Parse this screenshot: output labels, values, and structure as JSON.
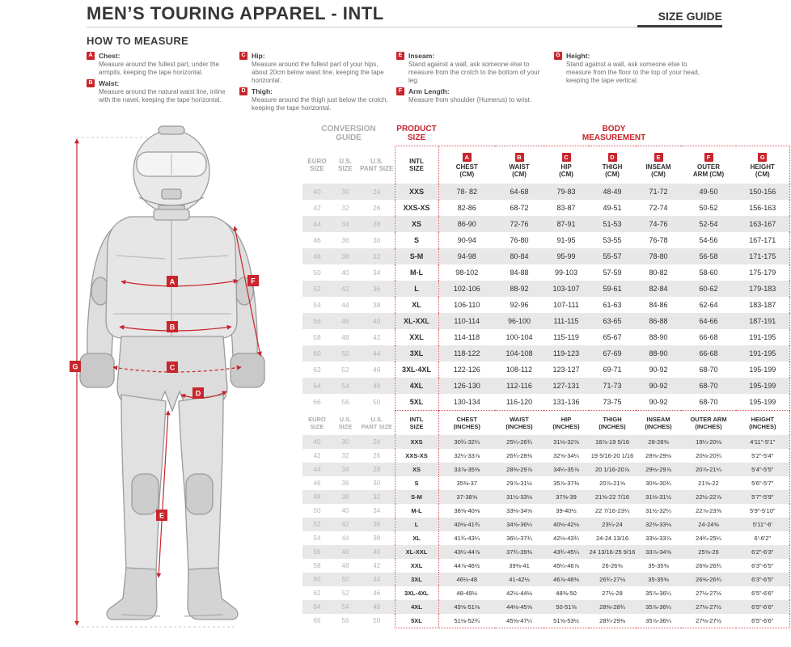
{
  "header": {
    "title": "MEN’S TOURING APPAREL - INTL",
    "size_guide_label": "SIZE GUIDE"
  },
  "how_to_measure": {
    "title": "HOW TO MEASURE",
    "columns": [
      [
        {
          "letter": "A",
          "name": "Chest:",
          "text": "Measure around the fullest part, under the armpits, keeping the tape horizontal."
        },
        {
          "letter": "B",
          "name": "Waist:",
          "text": "Measure around the natural waist line, inline with the navel, keeping the tape horizontal."
        }
      ],
      [
        {
          "letter": "C",
          "name": "Hip:",
          "text": "Measure around the fullest part of your hips, about 20cm below waist line, keeping the tape horizontal."
        },
        {
          "letter": "D",
          "name": "Thigh:",
          "text": "Measure around the thigh just below the crotch, keeping the tape horizontal."
        }
      ],
      [
        {
          "letter": "E",
          "name": "Inseam:",
          "text": "Stand against a wall, ask someone else to measure from the crotch to the bottom of your leg."
        },
        {
          "letter": "F",
          "name": "Arm Length:",
          "text": "Measure from shoulder (Humerus) to wrist."
        }
      ],
      [
        {
          "letter": "G",
          "name": "Height:",
          "text": "Stand against a wall, ask someone else to measure from the floor to the top of your head, keeping the tape vertical."
        }
      ]
    ]
  },
  "figure": {
    "badges": [
      "A",
      "B",
      "C",
      "D",
      "E",
      "F",
      "G"
    ],
    "accent_color": "#c8252c"
  },
  "table": {
    "conversion_guide_label": "CONVERSION GUIDE",
    "product_size_label": "PRODUCT SIZE",
    "body_measurement_label": "BODY MEASUREMENT",
    "conversion_headers": [
      {
        "line1": "EURO",
        "line2": "SIZE"
      },
      {
        "line1": "U.S.",
        "line2": "SIZE"
      },
      {
        "line1": "U.S.",
        "line2": "PANT SIZE"
      }
    ],
    "intl_header": {
      "line1": "INTL",
      "line2": "SIZE"
    },
    "cm_columns": [
      {
        "letter": "A",
        "line1": "CHEST",
        "line2": "(CM)"
      },
      {
        "letter": "B",
        "line1": "WAIST",
        "line2": "(CM)"
      },
      {
        "letter": "C",
        "line1": "HIP",
        "line2": "(CM)"
      },
      {
        "letter": "D",
        "line1": "THIGH",
        "line2": "(CM)"
      },
      {
        "letter": "E",
        "line1": "INSEAM",
        "line2": "(CM)"
      },
      {
        "letter": "F",
        "line1": "OUTER",
        "line2": "ARM (CM)"
      },
      {
        "letter": "G",
        "line1": "HEIGHT",
        "line2": "(CM)"
      }
    ],
    "inch_columns": [
      {
        "line1": "CHEST",
        "line2": "(INCHES)"
      },
      {
        "line1": "WAIST",
        "line2": "(INCHES)"
      },
      {
        "line1": "HIP",
        "line2": "(INCHES)"
      },
      {
        "line1": "THIGH",
        "line2": "(INCHES)"
      },
      {
        "line1": "INSEAM",
        "line2": "(INCHES)"
      },
      {
        "line1": "OUTER ARM",
        "line2": "(INCHES)"
      },
      {
        "line1": "HEIGHT",
        "line2": "(INCHES)"
      }
    ],
    "rows_cm": [
      {
        "euro": "40",
        "us": "30",
        "pant": "24",
        "intl": "XXS",
        "values": [
          "78- 82",
          "64-68",
          "79-83",
          "48-49",
          "71-72",
          "49-50",
          "150-156"
        ]
      },
      {
        "euro": "42",
        "us": "32",
        "pant": "26",
        "intl": "XXS-XS",
        "values": [
          "82-86",
          "68-72",
          "83-87",
          "49-51",
          "72-74",
          "50-52",
          "156-163"
        ]
      },
      {
        "euro": "44",
        "us": "34",
        "pant": "28",
        "intl": "XS",
        "values": [
          "86-90",
          "72-76",
          "87-91",
          "51-53",
          "74-76",
          "52-54",
          "163-167"
        ]
      },
      {
        "euro": "46",
        "us": "36",
        "pant": "30",
        "intl": "S",
        "values": [
          "90-94",
          "76-80",
          "91-95",
          "53-55",
          "76-78",
          "54-56",
          "167-171"
        ]
      },
      {
        "euro": "48",
        "us": "38",
        "pant": "32",
        "intl": "S-M",
        "values": [
          "94-98",
          "80-84",
          "95-99",
          "55-57",
          "78-80",
          "56-58",
          "171-175"
        ]
      },
      {
        "euro": "50",
        "us": "40",
        "pant": "34",
        "intl": "M-L",
        "values": [
          "98-102",
          "84-88",
          "99-103",
          "57-59",
          "80-82",
          "58-60",
          "175-179"
        ]
      },
      {
        "euro": "52",
        "us": "42",
        "pant": "36",
        "intl": "L",
        "values": [
          "102-106",
          "88-92",
          "103-107",
          "59-61",
          "82-84",
          "60-62",
          "179-183"
        ]
      },
      {
        "euro": "54",
        "us": "44",
        "pant": "38",
        "intl": "XL",
        "values": [
          "106-110",
          "92-96",
          "107-111",
          "61-63",
          "84-86",
          "62-64",
          "183-187"
        ]
      },
      {
        "euro": "56",
        "us": "46",
        "pant": "40",
        "intl": "XL-XXL",
        "values": [
          "110-114",
          "96-100",
          "111-115",
          "63-65",
          "86-88",
          "64-66",
          "187-191"
        ]
      },
      {
        "euro": "58",
        "us": "48",
        "pant": "42",
        "intl": "XXL",
        "values": [
          "114-118",
          "100-104",
          "115-119",
          "65-67",
          "88-90",
          "66-68",
          "191-195"
        ]
      },
      {
        "euro": "60",
        "us": "50",
        "pant": "44",
        "intl": "3XL",
        "values": [
          "118-122",
          "104-108",
          "119-123",
          "67-69",
          "88-90",
          "66-68",
          "191-195"
        ]
      },
      {
        "euro": "62",
        "us": "52",
        "pant": "46",
        "intl": "3XL-4XL",
        "values": [
          "122-126",
          "108-112",
          "123-127",
          "69-71",
          "90-92",
          "68-70",
          "195-199"
        ]
      },
      {
        "euro": "64",
        "us": "54",
        "pant": "48",
        "intl": "4XL",
        "values": [
          "126-130",
          "112-116",
          "127-131",
          "71-73",
          "90-92",
          "68-70",
          "195-199"
        ]
      },
      {
        "euro": "66",
        "us": "56",
        "pant": "50",
        "intl": "5XL",
        "values": [
          "130-134",
          "116-120",
          "131-136",
          "73-75",
          "90-92",
          "68-70",
          "195-199"
        ]
      }
    ],
    "rows_inches": [
      {
        "euro": "40",
        "us": "30",
        "pant": "24",
        "intl": "XXS",
        "values": [
          "30¾-32¼",
          "25¼-26¾",
          "31⅛-32⅝",
          "18⅞-19 5/16",
          "28-28⅜",
          "19¼-20⅛",
          "4'11\"-5'1\""
        ]
      },
      {
        "euro": "42",
        "us": "32",
        "pant": "26",
        "intl": "XXS-XS",
        "values": [
          "32¼-33⅞",
          "26¾-28⅜",
          "32⅝-34¼",
          "19 5/16-20 1/16",
          "28⅜-29⅛",
          "20⅛-20¾",
          "5'2\"-5'4\""
        ]
      },
      {
        "euro": "44",
        "us": "34",
        "pant": "28",
        "intl": "XS",
        "values": [
          "33⅞-35⅜",
          "28⅜-29⅞",
          "34¼-35⅞",
          "20 1/16-20⅞",
          "29½-29⅞",
          "20⅞-21¼",
          "5'4\"-5'5\""
        ]
      },
      {
        "euro": "46",
        "us": "36",
        "pant": "30",
        "intl": "S",
        "values": [
          "35⅜-37",
          "29⅞-31½",
          "35⅞-37⅜",
          "20⅞-21⅝",
          "30⅜-30¾",
          "21⅝-22",
          "5'6\"-5'7\""
        ]
      },
      {
        "euro": "48",
        "us": "38",
        "pant": "32",
        "intl": "S-M",
        "values": [
          "37-38⅝",
          "31½-33⅛",
          "37⅜-39",
          "21⅝-22 7/16",
          "31⅛-31½",
          "22½-22⅞",
          "5'7\"-5'9\""
        ]
      },
      {
        "euro": "50",
        "us": "40",
        "pant": "34",
        "intl": "M-L",
        "values": [
          "38⅝-40⅛",
          "33⅛-34⅝",
          "39-40½",
          "22 7/16-23¼",
          "31½-32¼",
          "22⅞-23⅝",
          "5'9\"-5'10\""
        ]
      },
      {
        "euro": "52",
        "us": "42",
        "pant": "36",
        "intl": "L",
        "values": [
          "40⅛-41¾",
          "34⅝-36¼",
          "40½-42⅛",
          "23¼-24",
          "32⅜-33⅛",
          "24-24⅜",
          "5'11\"-6'"
        ]
      },
      {
        "euro": "54",
        "us": "44",
        "pant": "38",
        "intl": "XL",
        "values": [
          "41¾-43¼",
          "36¼-37¾",
          "42⅛-43¾",
          "24-24 13/16",
          "33⅛-33⅞",
          "24¾-25¼",
          "6'-6'2\""
        ]
      },
      {
        "euro": "56",
        "us": "46",
        "pant": "40",
        "intl": "XL-XXL",
        "values": [
          "43¼-44⅞",
          "37¾-39⅜",
          "43¾-45¼",
          "24 13/16-25 9/16",
          "33⅞-34⅝",
          "25⅝-26",
          "6'2\"-6'3\""
        ]
      },
      {
        "euro": "58",
        "us": "48",
        "pant": "42",
        "intl": "XXL",
        "values": [
          "44⅞-46½",
          "39⅜-41",
          "45¼-46⅞",
          "26-26⅜",
          "35-35⅜",
          "26⅜-26¾",
          "6'3\"-6'5\""
        ]
      },
      {
        "euro": "60",
        "us": "50",
        "pant": "44",
        "intl": "3XL",
        "values": [
          "46½-48",
          "41-42½",
          "46⅞-48⅜",
          "26¾-27⅛",
          "35-35⅜",
          "26⅜-26¾",
          "6'3\"-6'5\""
        ]
      },
      {
        "euro": "62",
        "us": "52",
        "pant": "46",
        "intl": "3XL-4XL",
        "values": [
          "48-49½",
          "42½-44⅛",
          "48⅜-50",
          "27½-28",
          "35⅞-36¼",
          "27⅛-27½",
          "6'5\"-6'6\""
        ]
      },
      {
        "euro": "64",
        "us": "54",
        "pant": "48",
        "intl": "4XL",
        "values": [
          "49⅝-51⅛",
          "44⅛-45⅝",
          "50-51⅝",
          "28⅜-28¾",
          "35⅞-36¼",
          "27⅛-27½",
          "6'5\"-6'6\""
        ]
      },
      {
        "euro": "66",
        "us": "56",
        "pant": "50",
        "intl": "5XL",
        "values": [
          "51⅛-52¾",
          "45⅝-47¼",
          "51⅝-53½",
          "28¾-29⅜",
          "35⅞-36¼",
          "27⅛-27½",
          "6'5\"-6'6\""
        ]
      }
    ]
  }
}
